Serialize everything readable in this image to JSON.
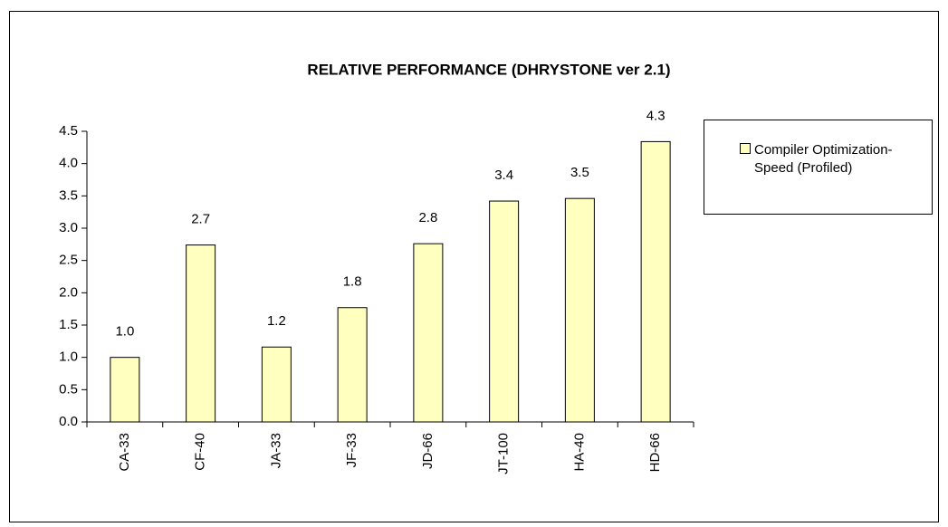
{
  "chart_data": {
    "type": "bar",
    "title": "RELATIVE PERFORMANCE (DHRYSTONE ver 2.1)",
    "categories": [
      "CA-33",
      "CF-40",
      "JA-33",
      "JF-33",
      "JD-66",
      "JT-100",
      "HA-40",
      "HD-66"
    ],
    "series": [
      {
        "name": "Compiler Optimization-Speed (Profiled)",
        "color": "#ffffc0",
        "values": [
          1.0,
          2.74,
          1.16,
          1.77,
          2.76,
          3.42,
          3.46,
          4.34
        ],
        "value_labels": [
          "1.0",
          "2.7",
          "1.2",
          "1.8",
          "2.8",
          "3.4",
          "3.5",
          "4.3"
        ]
      }
    ],
    "ylim": [
      0,
      4.5
    ],
    "yticks": [
      {
        "value": 0,
        "label": "0.0"
      },
      {
        "value": 0.5,
        "label": "0.5"
      },
      {
        "value": 1,
        "label": "1.0"
      },
      {
        "value": 1.5,
        "label": "1.5"
      },
      {
        "value": 2,
        "label": "2.0"
      },
      {
        "value": 2.5,
        "label": "2.5"
      },
      {
        "value": 3,
        "label": "3.0"
      },
      {
        "value": 3.5,
        "label": "3.5"
      },
      {
        "value": 4,
        "label": "4.0"
      },
      {
        "value": 4.5,
        "label": "4.5"
      }
    ],
    "legend": "right"
  }
}
